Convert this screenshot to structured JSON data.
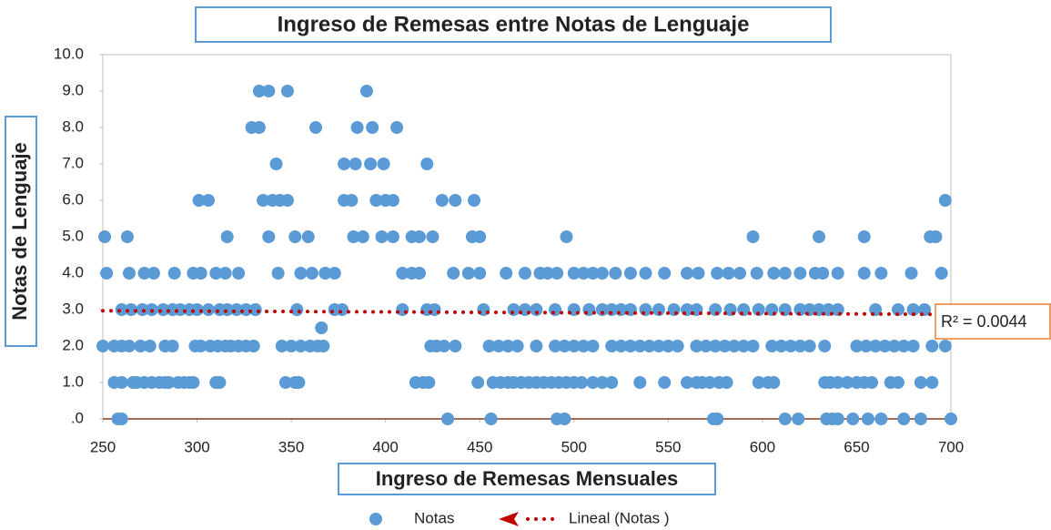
{
  "chart_data": {
    "type": "scatter",
    "title": "Ingreso de Remesas entre Notas de Lenguaje",
    "xlabel": "Ingreso de  Remesas Mensuales",
    "ylabel": "Notas de Lenguaje",
    "series": [
      {
        "name": "Notas",
        "color": "#5b9bd5",
        "x": [
          258,
          260,
          433,
          456,
          491,
          495,
          574,
          576,
          612,
          619,
          634,
          637,
          640,
          648,
          656,
          663,
          675,
          684,
          700,
          256,
          260,
          266,
          268,
          272,
          276,
          280,
          283,
          285,
          290,
          293,
          296,
          298,
          310,
          312,
          347,
          352,
          354,
          416,
          420,
          423,
          449,
          457,
          461,
          465,
          468,
          472,
          476,
          480,
          484,
          488,
          492,
          496,
          500,
          504,
          510,
          515,
          520,
          535,
          548,
          560,
          565,
          568,
          572,
          577,
          581,
          598,
          603,
          606,
          633,
          636,
          640,
          645,
          650,
          654,
          658,
          668,
          672,
          684,
          690,
          250,
          256,
          260,
          264,
          270,
          275,
          283,
          287,
          299,
          302,
          307,
          311,
          315,
          318,
          322,
          326,
          330,
          345,
          350,
          355,
          360,
          364,
          367,
          424,
          427,
          431,
          437,
          455,
          460,
          465,
          470,
          480,
          490,
          495,
          500,
          505,
          510,
          520,
          525,
          530,
          535,
          540,
          545,
          550,
          555,
          565,
          570,
          575,
          580,
          585,
          590,
          595,
          605,
          610,
          615,
          620,
          625,
          633,
          650,
          655,
          660,
          665,
          670,
          675,
          680,
          690,
          697,
          366,
          260,
          265,
          271,
          276,
          282,
          287,
          291,
          296,
          300,
          306,
          312,
          316,
          321,
          326,
          331,
          353,
          373,
          377,
          409,
          422,
          426,
          452,
          468,
          474,
          480,
          490,
          500,
          508,
          515,
          520,
          525,
          530,
          538,
          545,
          553,
          560,
          565,
          575,
          583,
          590,
          598,
          605,
          612,
          620,
          625,
          630,
          635,
          640,
          660,
          672,
          680,
          686,
          252,
          264,
          272,
          277,
          288,
          298,
          302,
          310,
          315,
          322,
          343,
          355,
          361,
          368,
          373,
          409,
          414,
          418,
          436,
          444,
          450,
          464,
          474,
          482,
          486,
          491,
          500,
          505,
          510,
          515,
          522,
          530,
          538,
          548,
          560,
          566,
          576,
          582,
          588,
          597,
          606,
          612,
          620,
          628,
          632,
          640,
          654,
          663,
          679,
          695,
          251,
          263,
          316,
          338,
          352,
          359,
          383,
          388,
          398,
          404,
          414,
          418,
          425,
          446,
          450,
          496,
          595,
          630,
          654,
          689,
          692,
          301,
          306,
          335,
          340,
          344,
          348,
          378,
          382,
          395,
          400,
          404,
          430,
          437,
          447,
          697,
          342,
          378,
          384,
          392,
          399,
          422,
          329,
          333,
          363,
          385,
          393,
          406,
          333,
          338,
          348,
          390
        ],
        "values": [
          0,
          0,
          0,
          0,
          0,
          0,
          0,
          0,
          0,
          0,
          0,
          0,
          0,
          0,
          0,
          0,
          0,
          0,
          0,
          1,
          1,
          1,
          1,
          1,
          1,
          1,
          1,
          1,
          1,
          1,
          1,
          1,
          1,
          1,
          1,
          1,
          1,
          1,
          1,
          1,
          1,
          1,
          1,
          1,
          1,
          1,
          1,
          1,
          1,
          1,
          1,
          1,
          1,
          1,
          1,
          1,
          1,
          1,
          1,
          1,
          1,
          1,
          1,
          1,
          1,
          1,
          1,
          1,
          1,
          1,
          1,
          1,
          1,
          1,
          1,
          1,
          1,
          1,
          1,
          2,
          2,
          2,
          2,
          2,
          2,
          2,
          2,
          2,
          2,
          2,
          2,
          2,
          2,
          2,
          2,
          2,
          2,
          2,
          2,
          2,
          2,
          2,
          2,
          2,
          2,
          2,
          2,
          2,
          2,
          2,
          2,
          2,
          2,
          2,
          2,
          2,
          2,
          2,
          2,
          2,
          2,
          2,
          2,
          2,
          2,
          2,
          2,
          2,
          2,
          2,
          2,
          2,
          2,
          2,
          2,
          2,
          2,
          2,
          2,
          2,
          2,
          2,
          2,
          2,
          2,
          2,
          2.5,
          3,
          3,
          3,
          3,
          3,
          3,
          3,
          3,
          3,
          3,
          3,
          3,
          3,
          3,
          3,
          3,
          3,
          3,
          3,
          3,
          3,
          3,
          3,
          3,
          3,
          3,
          3,
          3,
          3,
          3,
          3,
          3,
          3,
          3,
          3,
          3,
          3,
          3,
          3,
          3,
          3,
          3,
          3,
          3,
          3,
          3,
          3,
          3,
          3,
          3,
          3,
          3,
          4,
          4,
          4,
          4,
          4,
          4,
          4,
          4,
          4,
          4,
          4,
          4,
          4,
          4,
          4,
          4,
          4,
          4,
          4,
          4,
          4,
          4,
          4,
          4,
          4,
          4,
          4,
          4,
          4,
          4,
          4,
          4,
          4,
          4,
          4,
          4,
          4,
          4,
          4,
          4,
          4,
          4,
          4,
          4,
          4,
          4,
          4,
          4,
          4,
          4,
          5,
          5,
          5,
          5,
          5,
          5,
          5,
          5,
          5,
          5,
          5,
          5,
          5,
          5,
          5,
          5,
          5,
          5,
          5,
          5,
          5,
          6,
          6,
          6,
          6,
          6,
          6,
          6,
          6,
          6,
          6,
          6,
          6,
          6,
          6,
          6,
          7,
          7,
          7,
          7,
          7,
          7,
          8,
          8,
          8,
          8,
          8,
          8,
          9,
          9,
          9,
          9
        ]
      }
    ],
    "trendline": {
      "name": "Lineal (Notas )",
      "color": "#c00000",
      "x": [
        250,
        700
      ],
      "values": [
        2.97,
        2.87
      ]
    },
    "annotation": "R² = 0.0044",
    "xlim": [
      250,
      700
    ],
    "xticks": [
      250,
      300,
      350,
      400,
      450,
      500,
      550,
      600,
      650,
      700
    ],
    "ylim": [
      0,
      10
    ],
    "yticks": [
      {
        "value": 0,
        "label": ".0"
      },
      {
        "value": 1,
        "label": "1.0"
      },
      {
        "value": 2,
        "label": "2.0"
      },
      {
        "value": 3,
        "label": "3.0"
      },
      {
        "value": 4,
        "label": "4.0"
      },
      {
        "value": 5,
        "label": "5.0"
      },
      {
        "value": 6,
        "label": "6.0"
      },
      {
        "value": 7,
        "label": "7.0"
      },
      {
        "value": 8,
        "label": "8.0"
      },
      {
        "value": 9,
        "label": "9.0"
      },
      {
        "value": 10,
        "label": "10.0"
      }
    ],
    "legend": "bottom"
  }
}
